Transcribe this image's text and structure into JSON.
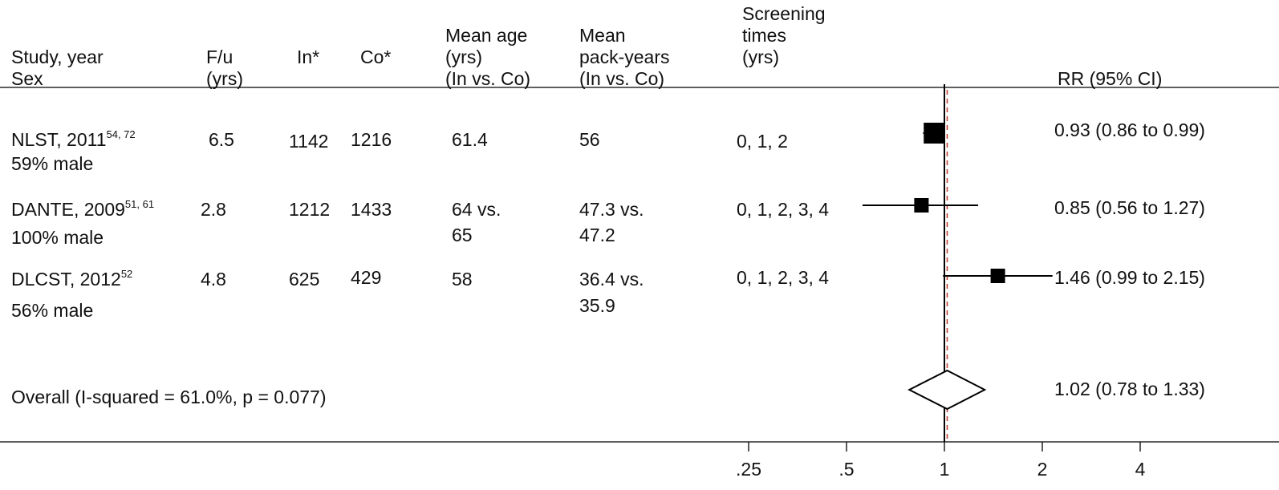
{
  "headers": {
    "study": [
      "",
      "",
      "Study, year",
      "Sex"
    ],
    "fu": [
      "",
      "",
      "F/u",
      "(yrs)"
    ],
    "in": [
      "",
      "",
      "In*",
      ""
    ],
    "co": [
      "",
      "",
      "Co*",
      ""
    ],
    "age": [
      "",
      "Mean age",
      "(yrs)",
      "(In vs. Co)"
    ],
    "pack": [
      "",
      "Mean",
      "pack-years",
      "(In vs. Co)"
    ],
    "screen": [
      "Screening",
      "times",
      "(yrs)",
      ""
    ],
    "rr": "RR (95% CI)"
  },
  "rows": [
    {
      "study": "NLST, 2011",
      "refs": "54, 72",
      "sex": "59% male",
      "fu": "6.5",
      "in": "1142",
      "co": "1216",
      "age1": "61.4",
      "age2": "",
      "pack1": "56",
      "pack2": "",
      "screen": "0, 1, 2",
      "rr_text": "0.93 (0.86 to 0.99)"
    },
    {
      "study": "DANTE, 2009",
      "refs": "51, 61",
      "sex": "100% male",
      "fu": "2.8",
      "in": "1212",
      "co": "1433",
      "age1": "64 vs.",
      "age2": "65",
      "pack1": "47.3 vs.",
      "pack2": "47.2",
      "screen": "0, 1, 2, 3, 4",
      "rr_text": "0.85 (0.56 to 1.27)"
    },
    {
      "study": "DLCST, 2012",
      "refs": "52",
      "sex": "56% male",
      "fu": "4.8",
      "in": "625",
      "co": "429",
      "age1": "58",
      "age2": "",
      "pack1": "36.4 vs.",
      "pack2": "35.9",
      "screen": "0, 1, 2, 3, 4",
      "rr_text": "1.46 (0.99 to 2.15)"
    }
  ],
  "overall": {
    "label": "Overall  (I-squared = 61.0%, p = 0.077)",
    "rr_text": "1.02 (0.78 to 1.33)"
  },
  "chart_data": {
    "type": "forest",
    "x_scale": "log",
    "x_ticks": [
      ".25",
      ".5",
      "1",
      "2",
      "4"
    ],
    "x_tick_values": [
      0.25,
      0.5,
      1,
      2,
      4
    ],
    "null_value": 1,
    "studies": [
      {
        "name": "NLST, 2011",
        "rr": 0.93,
        "lo": 0.86,
        "hi": 0.99
      },
      {
        "name": "DANTE, 2009",
        "rr": 0.85,
        "lo": 0.56,
        "hi": 1.27
      },
      {
        "name": "DLCST, 2012",
        "rr": 1.46,
        "lo": 0.99,
        "hi": 2.15
      }
    ],
    "overall": {
      "rr": 1.02,
      "lo": 0.78,
      "hi": 1.33
    }
  }
}
